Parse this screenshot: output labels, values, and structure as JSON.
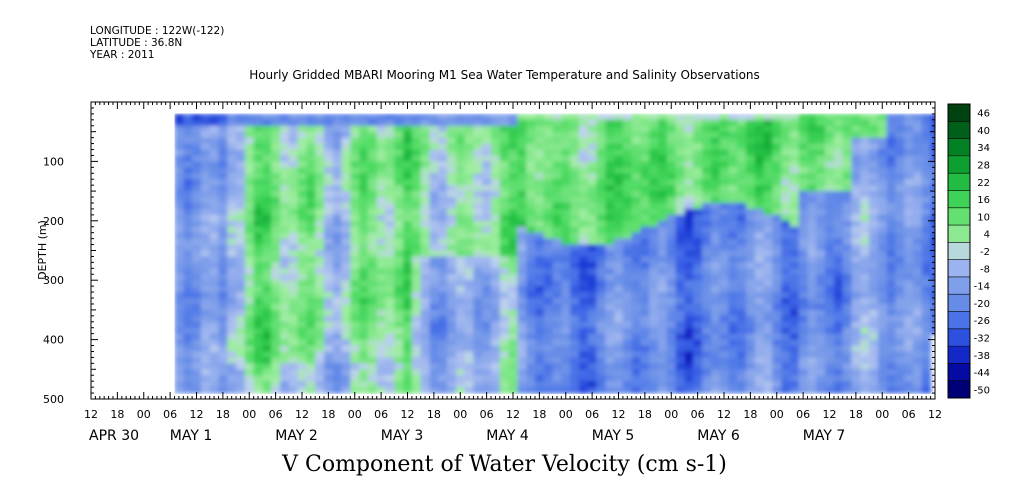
{
  "header": {
    "longitude": "LONGITUDE : 122W(-122)",
    "latitude": "LATITUDE : 36.8N",
    "year": "YEAR : 2011"
  },
  "chart_data": {
    "type": "heatmap",
    "title": "Hourly Gridded MBARI Mooring M1 Sea Water Temperature and Salinity Observations",
    "xlabel": "V Component of Water Velocity (cm s-1)",
    "ylabel": "DEPTH (m)",
    "ylim": [
      0,
      500
    ],
    "y_inverted": true,
    "y_ticks": [
      100,
      200,
      300,
      400,
      500
    ],
    "x_range_hours": [
      -12,
      180
    ],
    "x_hour_ticks": [
      "12",
      "18",
      "00",
      "06",
      "12",
      "18",
      "00",
      "06",
      "12",
      "18",
      "00",
      "06",
      "12",
      "18",
      "00",
      "06",
      "12",
      "18",
      "00",
      "06",
      "12",
      "18",
      "00",
      "06",
      "12",
      "18",
      "00",
      "06",
      "12",
      "18",
      "00",
      "06",
      "12"
    ],
    "x_day_labels": [
      "APR 30",
      "MAY  1",
      "MAY  2",
      "MAY  3",
      "MAY  4",
      "MAY  5",
      "MAY  6",
      "MAY  7"
    ],
    "colorbar_levels": [
      46,
      40,
      34,
      28,
      22,
      16,
      10,
      4,
      -2,
      -8,
      -14,
      -20,
      -26,
      -32,
      -38,
      -44,
      -50
    ],
    "colorbar_range": [
      -50,
      50
    ],
    "data_extent_hours": [
      7,
      180
    ],
    "data_extent_depth_m": [
      20,
      490
    ],
    "approx_features": [
      {
        "region": "surface 20-40 m, Apr 30 - May 1",
        "value_cm_s": -30
      },
      {
        "region": "upper 200 m, May 3 - May 6",
        "value_cm_s": 12
      },
      {
        "region": "200-490 m, May 3 12h - May 6",
        "value_cm_s": -18
      },
      {
        "region": "100-400 m, May 1 - May 2",
        "value_cm_s": 10
      },
      {
        "region": "deep 300-490 m, May 6 - May 7",
        "value_cm_s": -22
      }
    ]
  }
}
